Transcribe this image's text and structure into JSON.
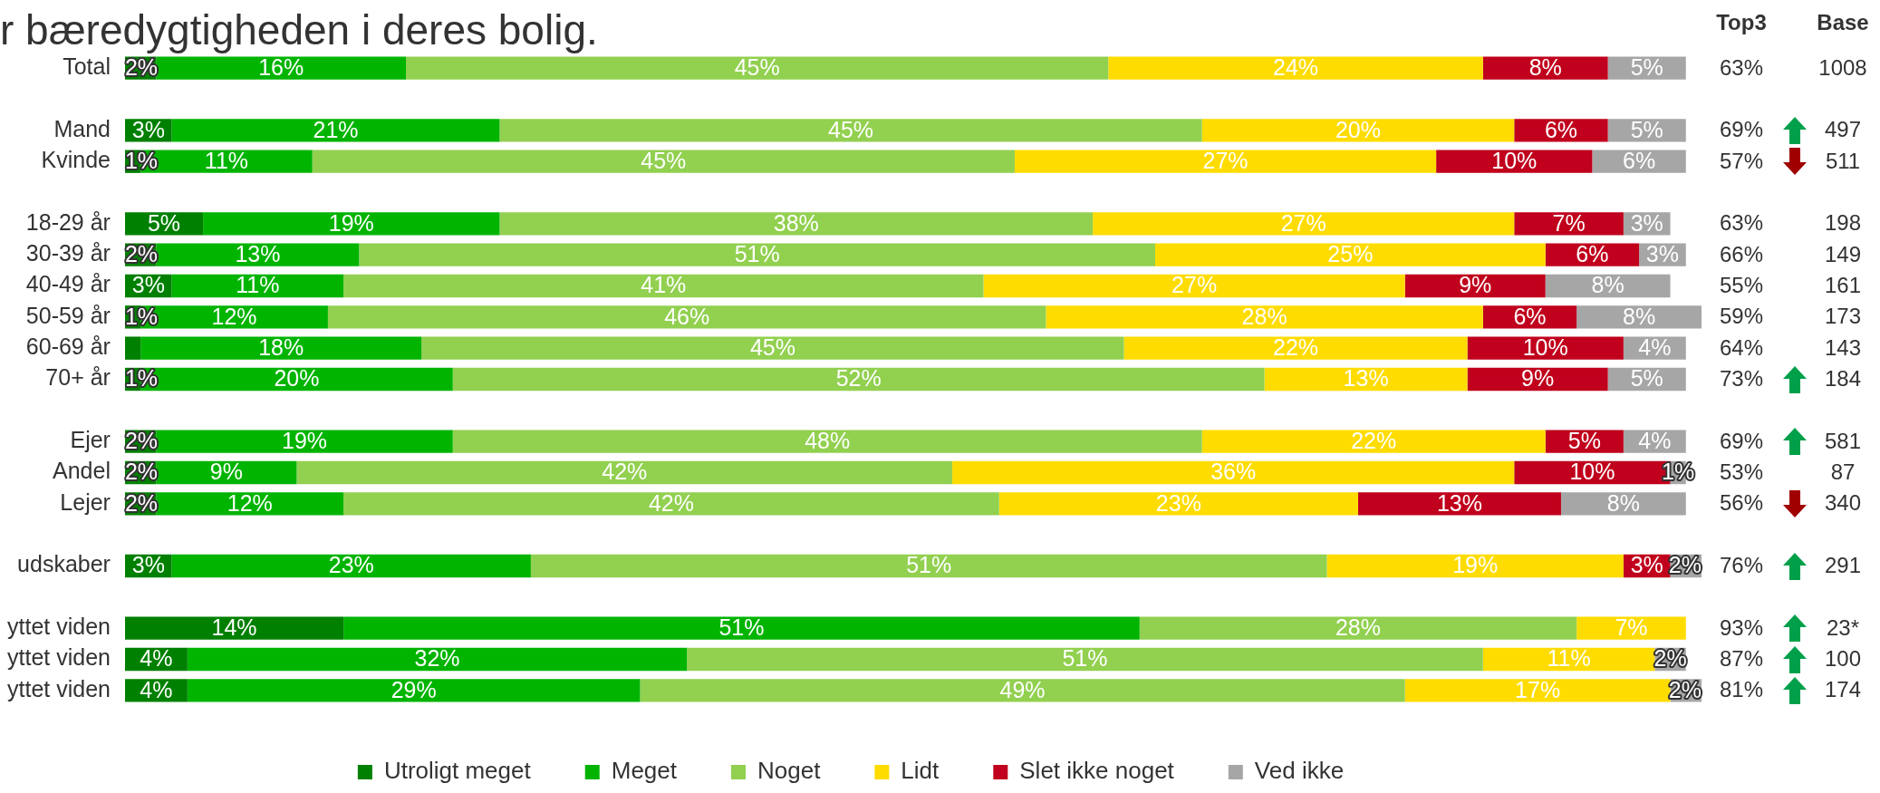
{
  "chart_data": {
    "type": "bar",
    "orientation": "horizontal",
    "stacked": true,
    "title": "r bæredygtigheden i deres bolig.",
    "categories": [
      "Total",
      null,
      "Mand",
      "Kvinde",
      null,
      "18-29 år",
      "30-39 år",
      "40-49 år",
      "50-59 år",
      "60-69 år",
      "70+ år",
      null,
      "Ejer",
      "Andel",
      "Lejer",
      null,
      "udskaber",
      null,
      "yttet viden",
      "yttet viden",
      "yttet viden"
    ],
    "series": [
      {
        "name": "Utroligt meget",
        "color": "#008000",
        "values": [
          2,
          null,
          3,
          1,
          null,
          5,
          2,
          3,
          1,
          1,
          1,
          null,
          2,
          2,
          2,
          null,
          3,
          null,
          14,
          4,
          4
        ],
        "value_labels": [
          "2%",
          null,
          "3%",
          "1%",
          null,
          "5%",
          "2%",
          "3%",
          "1%",
          null,
          "1%",
          null,
          "2%",
          "2%",
          "2%",
          null,
          "3%",
          null,
          "14%",
          "4%",
          "4%"
        ]
      },
      {
        "name": "Meget",
        "color": "#00b400",
        "values": [
          16,
          null,
          21,
          11,
          null,
          19,
          13,
          11,
          12,
          18,
          20,
          null,
          19,
          9,
          12,
          null,
          23,
          null,
          51,
          32,
          29
        ],
        "value_labels": [
          "16%",
          null,
          "21%",
          "11%",
          null,
          "19%",
          "13%",
          "11%",
          "12%",
          "18%",
          "20%",
          null,
          "19%",
          "9%",
          "12%",
          null,
          "23%",
          null,
          "51%",
          "32%",
          "29%"
        ]
      },
      {
        "name": "Noget",
        "color": "#92d050",
        "values": [
          45,
          null,
          45,
          45,
          null,
          38,
          51,
          41,
          46,
          45,
          52,
          null,
          48,
          42,
          42,
          null,
          51,
          null,
          28,
          51,
          49
        ],
        "value_labels": [
          "45%",
          null,
          "45%",
          "45%",
          null,
          "38%",
          "51%",
          "41%",
          "46%",
          "45%",
          "52%",
          null,
          "48%",
          "42%",
          "42%",
          null,
          "51%",
          null,
          "28%",
          "51%",
          "49%"
        ]
      },
      {
        "name": "Lidt",
        "color": "#ffdc00",
        "values": [
          24,
          null,
          20,
          27,
          null,
          27,
          25,
          27,
          28,
          22,
          13,
          null,
          22,
          36,
          23,
          null,
          19,
          null,
          7,
          11,
          17
        ],
        "value_labels": [
          "24%",
          null,
          "20%",
          "27%",
          null,
          "27%",
          "25%",
          "27%",
          "28%",
          "22%",
          "13%",
          null,
          "22%",
          "36%",
          "23%",
          null,
          "19%",
          null,
          "7%",
          "11%",
          "17%"
        ]
      },
      {
        "name": "Slet ikke noget",
        "color": "#c0001c",
        "values": [
          8,
          null,
          6,
          10,
          null,
          7,
          6,
          9,
          6,
          10,
          9,
          null,
          5,
          10,
          13,
          null,
          3,
          null,
          null,
          null,
          null
        ],
        "value_labels": [
          "8%",
          null,
          "6%",
          "10%",
          null,
          "7%",
          "6%",
          "9%",
          "6%",
          "10%",
          "9%",
          null,
          "5%",
          "10%",
          "13%",
          null,
          "3%",
          null,
          null,
          null,
          null
        ]
      },
      {
        "name": "Ved ikke",
        "color": "#a6a6a6",
        "values": [
          5,
          null,
          5,
          6,
          null,
          3,
          3,
          8,
          8,
          4,
          5,
          null,
          4,
          1,
          8,
          null,
          2,
          null,
          null,
          2,
          2
        ],
        "value_labels": [
          "5%",
          null,
          "5%",
          "6%",
          null,
          "3%",
          "3%",
          "8%",
          "8%",
          "4%",
          "5%",
          null,
          "4%",
          "1%",
          "8%",
          null,
          "2%",
          null,
          null,
          "2%",
          "2%"
        ]
      }
    ],
    "xlim": [
      0,
      101
    ],
    "tick_labels": "y",
    "legend": "bottom",
    "annotations": [
      "Top3",
      "Base",
      "63%",
      "1008",
      "69%",
      "497",
      "57%",
      "511",
      "63%",
      "198",
      "66%",
      "149",
      "55%",
      "161",
      "59%",
      "173",
      "64%",
      "143",
      "73%",
      "184",
      "69%",
      "581",
      "53%",
      "87",
      "56%",
      "340",
      "76%",
      "291",
      "93%",
      "23*",
      "87%",
      "100",
      "81%",
      "174"
    ]
  }
}
